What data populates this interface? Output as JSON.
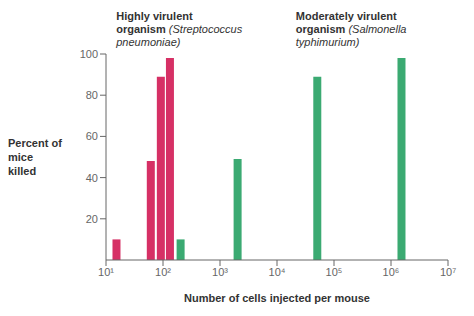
{
  "chart_data": {
    "type": "bar",
    "xlabel": "Number of cells injected per mouse",
    "ylabel": "Percent of\nmice\nkilled",
    "annotations": [
      "Highly virulent\norganism (Streptococcus\npneumoniae)",
      "Moderately virulent\norganism (Salmonella\ntyphimurium)"
    ],
    "x": [
      15,
      60,
      90,
      130,
      200,
      2000,
      50000,
      1500000
    ],
    "values": [
      10,
      48,
      89,
      98,
      10,
      49,
      89,
      98
    ],
    "colors": [
      "#D63065",
      "#D63065",
      "#D63065",
      "#D63065",
      "#3BAA72",
      "#3BAA72",
      "#3BAA72",
      "#3BAA72"
    ],
    "log": "x",
    "xlim": [
      10,
      10000000
    ],
    "xticks": [
      {
        "value": 10,
        "label": "10¹"
      },
      {
        "value": 100,
        "label": "10²"
      },
      {
        "value": 1000,
        "label": "10³"
      },
      {
        "value": 10000,
        "label": "10⁴"
      },
      {
        "value": 100000,
        "label": "10⁵"
      },
      {
        "value": 1000000,
        "label": "10⁶"
      },
      {
        "value": 10000000,
        "label": "10⁷"
      }
    ],
    "ylim": [
      0,
      100
    ],
    "yticks": [
      20,
      40,
      60,
      80,
      100
    ],
    "grid": false
  }
}
